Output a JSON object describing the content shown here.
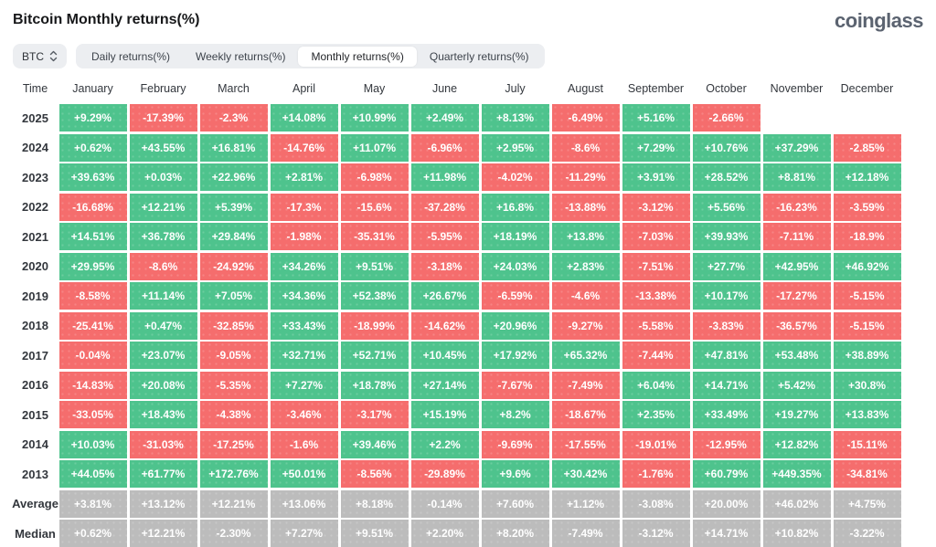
{
  "page": {
    "title": "Bitcoin Monthly returns(%)",
    "logo": "coinglass"
  },
  "toolbar": {
    "symbol_selector": {
      "label": "BTC",
      "icon": "sort-arrows-icon"
    },
    "tabs": [
      {
        "id": "daily",
        "label": "Daily returns(%)",
        "active": false
      },
      {
        "id": "weekly",
        "label": "Weekly returns(%)",
        "active": false
      },
      {
        "id": "monthly",
        "label": "Monthly returns(%)",
        "active": true
      },
      {
        "id": "quarterly",
        "label": "Quarterly returns(%)",
        "active": false
      }
    ]
  },
  "colors": {
    "positive": "#4ec38d",
    "negative": "#f56d6d",
    "summary": "#bcbcbc"
  },
  "table": {
    "columns": [
      "Time",
      "January",
      "February",
      "March",
      "April",
      "May",
      "June",
      "July",
      "August",
      "September",
      "October",
      "November",
      "December"
    ],
    "rows": [
      {
        "label": "2025",
        "type": "year",
        "values": [
          "+9.29%",
          "-17.39%",
          "-2.3%",
          "+14.08%",
          "+10.99%",
          "+2.49%",
          "+8.13%",
          "-6.49%",
          "+5.16%",
          "-2.66%",
          "",
          ""
        ]
      },
      {
        "label": "2024",
        "type": "year",
        "values": [
          "+0.62%",
          "+43.55%",
          "+16.81%",
          "-14.76%",
          "+11.07%",
          "-6.96%",
          "+2.95%",
          "-8.6%",
          "+7.29%",
          "+10.76%",
          "+37.29%",
          "-2.85%"
        ]
      },
      {
        "label": "2023",
        "type": "year",
        "values": [
          "+39.63%",
          "+0.03%",
          "+22.96%",
          "+2.81%",
          "-6.98%",
          "+11.98%",
          "-4.02%",
          "-11.29%",
          "+3.91%",
          "+28.52%",
          "+8.81%",
          "+12.18%"
        ]
      },
      {
        "label": "2022",
        "type": "year",
        "values": [
          "-16.68%",
          "+12.21%",
          "+5.39%",
          "-17.3%",
          "-15.6%",
          "-37.28%",
          "+16.8%",
          "-13.88%",
          "-3.12%",
          "+5.56%",
          "-16.23%",
          "-3.59%"
        ]
      },
      {
        "label": "2021",
        "type": "year",
        "values": [
          "+14.51%",
          "+36.78%",
          "+29.84%",
          "-1.98%",
          "-35.31%",
          "-5.95%",
          "+18.19%",
          "+13.8%",
          "-7.03%",
          "+39.93%",
          "-7.11%",
          "-18.9%"
        ]
      },
      {
        "label": "2020",
        "type": "year",
        "values": [
          "+29.95%",
          "-8.6%",
          "-24.92%",
          "+34.26%",
          "+9.51%",
          "-3.18%",
          "+24.03%",
          "+2.83%",
          "-7.51%",
          "+27.7%",
          "+42.95%",
          "+46.92%"
        ]
      },
      {
        "label": "2019",
        "type": "year",
        "values": [
          "-8.58%",
          "+11.14%",
          "+7.05%",
          "+34.36%",
          "+52.38%",
          "+26.67%",
          "-6.59%",
          "-4.6%",
          "-13.38%",
          "+10.17%",
          "-17.27%",
          "-5.15%"
        ]
      },
      {
        "label": "2018",
        "type": "year",
        "values": [
          "-25.41%",
          "+0.47%",
          "-32.85%",
          "+33.43%",
          "-18.99%",
          "-14.62%",
          "+20.96%",
          "-9.27%",
          "-5.58%",
          "-3.83%",
          "-36.57%",
          "-5.15%"
        ]
      },
      {
        "label": "2017",
        "type": "year",
        "values": [
          "-0.04%",
          "+23.07%",
          "-9.05%",
          "+32.71%",
          "+52.71%",
          "+10.45%",
          "+17.92%",
          "+65.32%",
          "-7.44%",
          "+47.81%",
          "+53.48%",
          "+38.89%"
        ]
      },
      {
        "label": "2016",
        "type": "year",
        "values": [
          "-14.83%",
          "+20.08%",
          "-5.35%",
          "+7.27%",
          "+18.78%",
          "+27.14%",
          "-7.67%",
          "-7.49%",
          "+6.04%",
          "+14.71%",
          "+5.42%",
          "+30.8%"
        ]
      },
      {
        "label": "2015",
        "type": "year",
        "values": [
          "-33.05%",
          "+18.43%",
          "-4.38%",
          "-3.46%",
          "-3.17%",
          "+15.19%",
          "+8.2%",
          "-18.67%",
          "+2.35%",
          "+33.49%",
          "+19.27%",
          "+13.83%"
        ]
      },
      {
        "label": "2014",
        "type": "year",
        "values": [
          "+10.03%",
          "-31.03%",
          "-17.25%",
          "-1.6%",
          "+39.46%",
          "+2.2%",
          "-9.69%",
          "-17.55%",
          "-19.01%",
          "-12.95%",
          "+12.82%",
          "-15.11%"
        ]
      },
      {
        "label": "2013",
        "type": "year",
        "values": [
          "+44.05%",
          "+61.77%",
          "+172.76%",
          "+50.01%",
          "-8.56%",
          "-29.89%",
          "+9.6%",
          "+30.42%",
          "-1.76%",
          "+60.79%",
          "+449.35%",
          "-34.81%"
        ]
      },
      {
        "label": "Average",
        "type": "summary",
        "values": [
          "+3.81%",
          "+13.12%",
          "+12.21%",
          "+13.06%",
          "+8.18%",
          "-0.14%",
          "+7.60%",
          "+1.12%",
          "-3.08%",
          "+20.00%",
          "+46.02%",
          "+4.75%"
        ]
      },
      {
        "label": "Median",
        "type": "summary",
        "values": [
          "+0.62%",
          "+12.21%",
          "-2.30%",
          "+7.27%",
          "+9.51%",
          "+2.20%",
          "+8.20%",
          "-7.49%",
          "-3.12%",
          "+14.71%",
          "+10.82%",
          "-3.22%"
        ]
      }
    ]
  }
}
